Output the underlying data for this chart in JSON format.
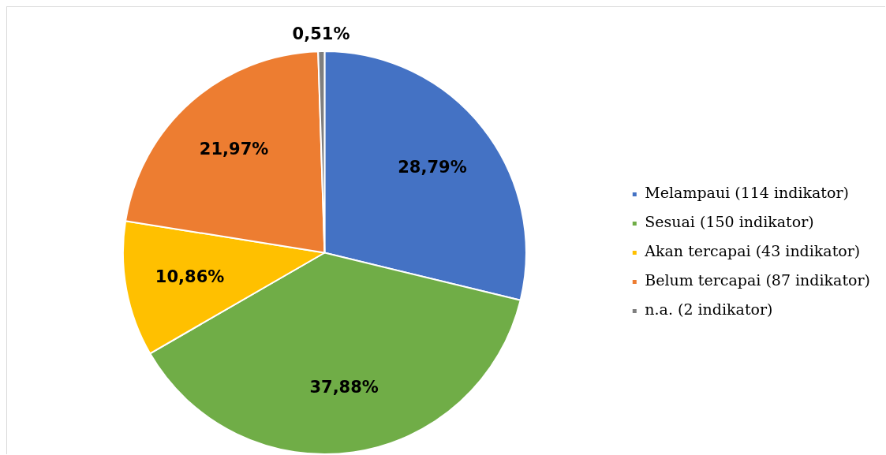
{
  "chart_data": {
    "type": "pie",
    "categories": [
      "Melampaui (114 indikator)",
      "Sesuai (150 indikator)",
      "Akan tercapai (43 indikator)",
      "Belum tercapai (87 indikator)",
      "n.a. (2 indikator)"
    ],
    "values": [
      28.79,
      37.88,
      10.86,
      21.97,
      0.51
    ],
    "colors": [
      "#4472c4",
      "#70ad47",
      "#ffc000",
      "#ed7d31",
      "#7f7f7f"
    ],
    "value_labels": [
      "28,79%",
      "37,88%",
      "10,86%",
      "21,97%",
      "0,51%"
    ],
    "legend": "right"
  }
}
